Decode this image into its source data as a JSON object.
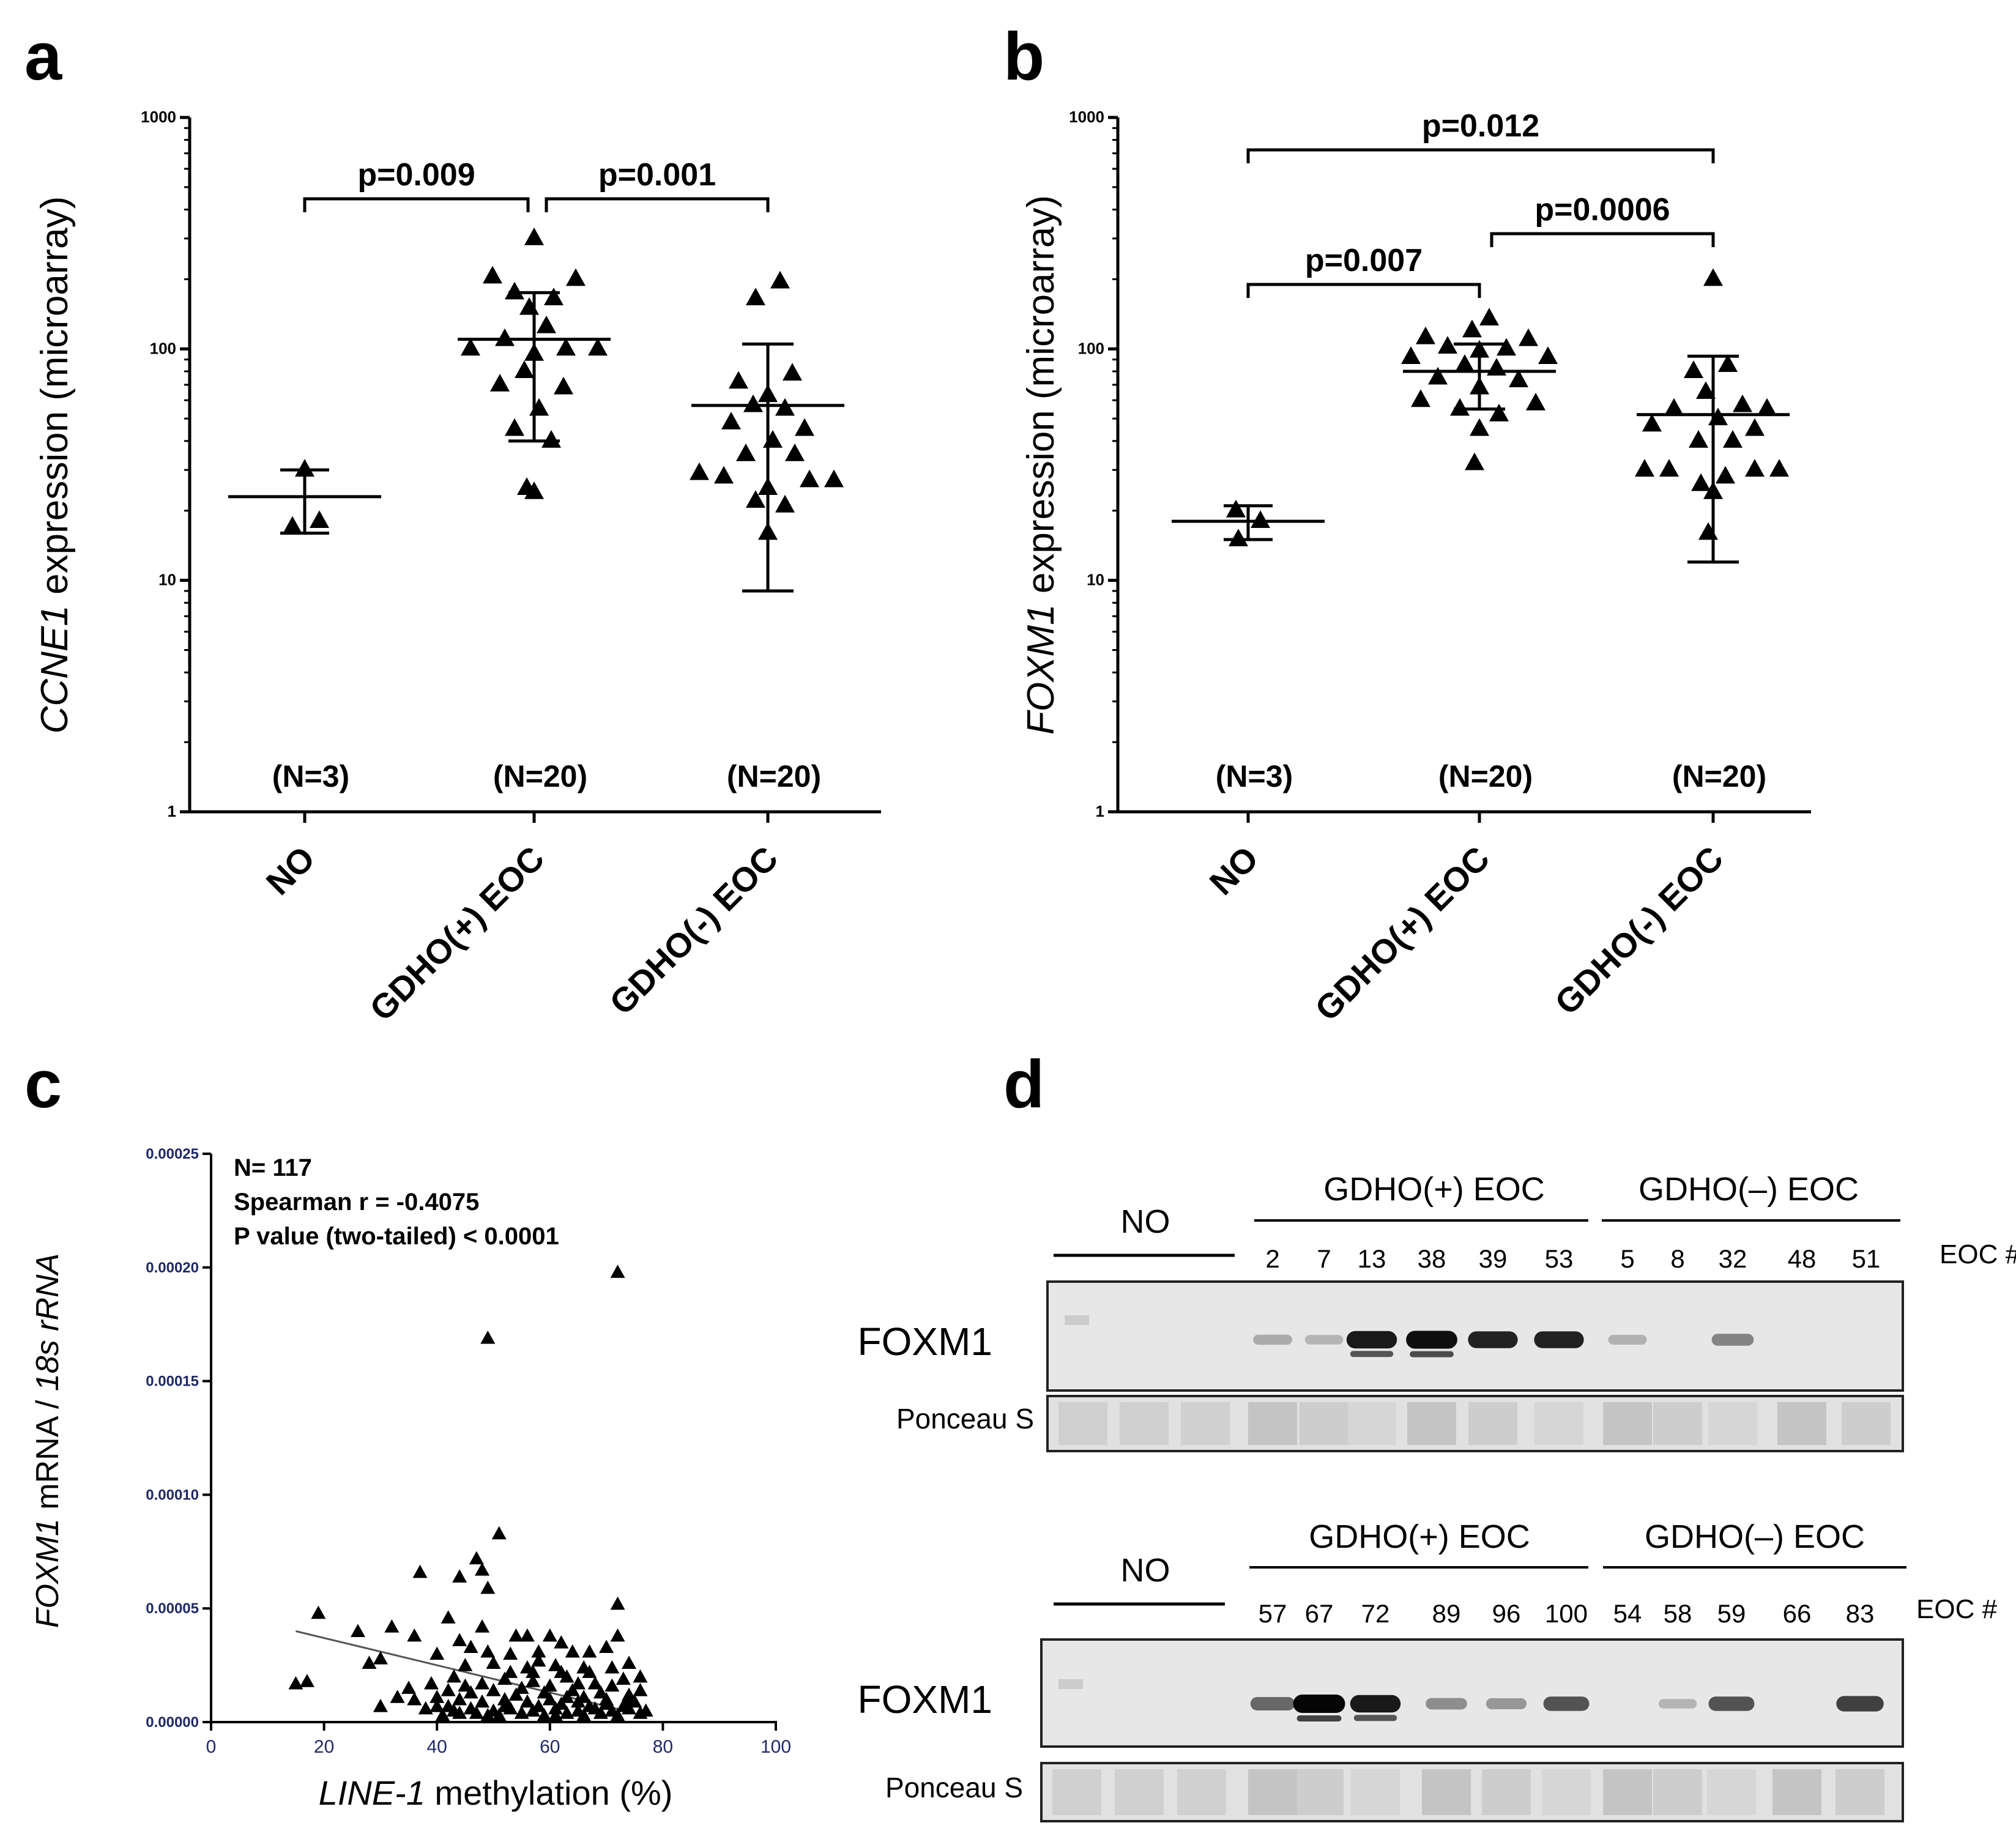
{
  "figure_labels": {
    "a": "a",
    "b": "b",
    "c": "c",
    "d": "d"
  },
  "chart_data": [
    {
      "panel": "a",
      "type": "scatter",
      "ylabel_gene": "CCNE1",
      "ylabel_rest": " expression (microarray)",
      "yscale": "log",
      "ylim": [
        1,
        1000
      ],
      "ytick_labels": [
        "1",
        "10",
        "100",
        "1000"
      ],
      "categories": [
        "NO",
        "GDHO(+) EOC",
        "GDHO(-) EOC"
      ],
      "n_labels": [
        "(N=3)",
        "(N=20)",
        "(N=20)"
      ],
      "groups": [
        {
          "name": "NO",
          "mean": 23,
          "error_low": 16,
          "error_high": 30,
          "points": [
            [
              0.0,
              30
            ],
            [
              -0.05,
              17
            ],
            [
              0.06,
              18
            ]
          ]
        },
        {
          "name": "GDHO(+) EOC",
          "mean": 110,
          "error_low": 40,
          "error_high": 175,
          "points": [
            [
              0.0,
              300
            ],
            [
              -0.17,
              205
            ],
            [
              0.17,
              200
            ],
            [
              -0.08,
              175
            ],
            [
              0.08,
              165
            ],
            [
              -0.02,
              150
            ],
            [
              0.05,
              125
            ],
            [
              -0.12,
              110
            ],
            [
              0.13,
              100
            ],
            [
              -0.26,
              100
            ],
            [
              0.26,
              100
            ],
            [
              0.0,
              95
            ],
            [
              -0.04,
              80
            ],
            [
              -0.14,
              70
            ],
            [
              0.12,
              68
            ],
            [
              0.02,
              55
            ],
            [
              -0.08,
              45
            ],
            [
              0.07,
              40
            ],
            [
              -0.03,
              25
            ],
            [
              0.0,
              24
            ]
          ]
        },
        {
          "name": "GDHO(-) EOC",
          "mean": 57,
          "error_low": 9,
          "error_high": 105,
          "points": [
            [
              0.05,
              195
            ],
            [
              -0.05,
              165
            ],
            [
              0.1,
              78
            ],
            [
              -0.12,
              72
            ],
            [
              0.0,
              63
            ],
            [
              -0.06,
              57
            ],
            [
              0.07,
              55
            ],
            [
              -0.15,
              48
            ],
            [
              0.15,
              45
            ],
            [
              0.02,
              40
            ],
            [
              -0.09,
              35
            ],
            [
              0.11,
              35
            ],
            [
              -0.28,
              29
            ],
            [
              -0.18,
              28
            ],
            [
              0.27,
              27
            ],
            [
              0.17,
              27
            ],
            [
              0.0,
              25
            ],
            [
              -0.05,
              22
            ],
            [
              0.07,
              21
            ],
            [
              0.0,
              16
            ]
          ]
        }
      ],
      "comparisons": [
        {
          "from": 0,
          "to": 1,
          "label": "p=0.009"
        },
        {
          "from": 1,
          "to": 2,
          "label": "p=0.001"
        }
      ]
    },
    {
      "panel": "b",
      "type": "scatter",
      "ylabel_gene": "FOXM1",
      "ylabel_rest": " expression (microarray)",
      "yscale": "log",
      "ylim": [
        1,
        1000
      ],
      "ytick_labels": [
        "1",
        "10",
        "100",
        "1000"
      ],
      "categories": [
        "NO",
        "GDHO(+) EOC",
        "GDHO(-) EOC"
      ],
      "n_labels": [
        "(N=3)",
        "(N=20)",
        "(N=20)"
      ],
      "groups": [
        {
          "name": "NO",
          "mean": 18,
          "error_low": 15,
          "error_high": 21,
          "points": [
            [
              -0.05,
              20
            ],
            [
              0.05,
              18
            ],
            [
              -0.04,
              15
            ]
          ]
        },
        {
          "name": "GDHO(+) EOC",
          "mean": 80,
          "error_low": 55,
          "error_high": 105,
          "points": [
            [
              0.04,
              135
            ],
            [
              -0.03,
              120
            ],
            [
              -0.22,
              112
            ],
            [
              0.2,
              110
            ],
            [
              -0.13,
              102
            ],
            [
              0.11,
              100
            ],
            [
              0.0,
              98
            ],
            [
              -0.28,
              92
            ],
            [
              0.28,
              92
            ],
            [
              -0.06,
              85
            ],
            [
              0.07,
              82
            ],
            [
              -0.17,
              75
            ],
            [
              0.16,
              73
            ],
            [
              0.0,
              68
            ],
            [
              -0.24,
              60
            ],
            [
              0.23,
              58
            ],
            [
              -0.08,
              55
            ],
            [
              0.08,
              52
            ],
            [
              0.0,
              45
            ],
            [
              -0.02,
              32
            ]
          ]
        },
        {
          "name": "GDHO(-) EOC",
          "mean": 52,
          "error_low": 12,
          "error_high": 93,
          "points": [
            [
              0.0,
              200
            ],
            [
              0.06,
              85
            ],
            [
              -0.08,
              80
            ],
            [
              -0.03,
              65
            ],
            [
              0.12,
              57
            ],
            [
              -0.16,
              55
            ],
            [
              0.22,
              55
            ],
            [
              0.02,
              50
            ],
            [
              -0.25,
              47
            ],
            [
              0.17,
              45
            ],
            [
              -0.06,
              40
            ],
            [
              0.08,
              40
            ],
            [
              -0.28,
              30
            ],
            [
              -0.18,
              30
            ],
            [
              0.27,
              30
            ],
            [
              0.17,
              30
            ],
            [
              0.05,
              28
            ],
            [
              -0.05,
              26
            ],
            [
              0.0,
              24
            ],
            [
              -0.02,
              16
            ]
          ]
        }
      ],
      "comparisons": [
        {
          "from": 0,
          "to": 2,
          "label": "p=0.012"
        },
        {
          "from": 0,
          "to": 1,
          "label": "p=0.007"
        },
        {
          "from": 1,
          "to": 2,
          "label": "p=0.0006"
        }
      ]
    },
    {
      "panel": "c",
      "type": "scatter",
      "ylabel_gene": "FOXM1",
      "ylabel_mid": " mRNA / ",
      "ylabel_ref": "18s rRNA",
      "xlabel_gene": "LINE-1",
      "xlabel_rest": " methylation (%)",
      "xlim": [
        0,
        100
      ],
      "ylim": [
        0,
        0.00025
      ],
      "xticks": [
        0,
        20,
        40,
        60,
        80,
        100
      ],
      "xtick_labels": [
        "0",
        "20",
        "40",
        "60",
        "80",
        "100"
      ],
      "yticks": [
        0,
        5e-05,
        0.0001,
        0.00015,
        0.0002,
        0.00025
      ],
      "ytick_labels": [
        "0.00000",
        "0.00005",
        "0.00010",
        "0.00015",
        "0.00020",
        "0.00025"
      ],
      "annotations": [
        "N= 117",
        "Spearman r = -0.4075",
        "P value (two-tailed) < 0.0001"
      ],
      "regression": {
        "x": [
          15,
          75
        ],
        "y": [
          4e-05,
          4e-06
        ]
      },
      "points": [
        [
          72,
          0.000196
        ],
        [
          49,
          0.000167
        ],
        [
          51,
          8.1e-05
        ],
        [
          47,
          7e-05
        ],
        [
          48,
          6.5e-05
        ],
        [
          37,
          6.4e-05
        ],
        [
          44,
          6.2e-05
        ],
        [
          49,
          5.7e-05
        ],
        [
          19,
          4.6e-05
        ],
        [
          42,
          4.4e-05
        ],
        [
          72,
          5e-05
        ],
        [
          48,
          4e-05
        ],
        [
          32,
          4e-05
        ],
        [
          26,
          3.8e-05
        ],
        [
          36,
          3.6e-05
        ],
        [
          44,
          3.4e-05
        ],
        [
          54,
          3.6e-05
        ],
        [
          56,
          3.6e-05
        ],
        [
          60,
          3.6e-05
        ],
        [
          46,
          3.1e-05
        ],
        [
          40,
          2.8e-05
        ],
        [
          30,
          2.6e-05
        ],
        [
          62,
          3.3e-05
        ],
        [
          28,
          2.4e-05
        ],
        [
          53,
          2.8e-05
        ],
        [
          58,
          2.9e-05
        ],
        [
          64,
          2.9e-05
        ],
        [
          67,
          2.9e-05
        ],
        [
          70,
          3.1e-05
        ],
        [
          72,
          3.6e-05
        ],
        [
          45,
          2.3e-05
        ],
        [
          50,
          2.4e-05
        ],
        [
          56,
          2.2e-05
        ],
        [
          61,
          2.3e-05
        ],
        [
          66,
          2.2e-05
        ],
        [
          71,
          2.2e-05
        ],
        [
          74,
          2.4e-05
        ],
        [
          15,
          1.5e-05
        ],
        [
          17,
          1.6e-05
        ],
        [
          43,
          1.8e-05
        ],
        [
          48,
          1.5e-05
        ],
        [
          52,
          1.7e-05
        ],
        [
          57,
          1.6e-05
        ],
        [
          63,
          1.8e-05
        ],
        [
          68,
          1.5e-05
        ],
        [
          73,
          1.7e-05
        ],
        [
          76,
          1.8e-05
        ],
        [
          42,
          1.2e-05
        ],
        [
          46,
          1.1e-05
        ],
        [
          50,
          1.2e-05
        ],
        [
          54,
          1e-05
        ],
        [
          59,
          1.1e-05
        ],
        [
          64,
          1.2e-05
        ],
        [
          69,
          1.1e-05
        ],
        [
          74,
          1e-05
        ],
        [
          33,
          9e-06
        ],
        [
          36,
          8e-06
        ],
        [
          40,
          9e-06
        ],
        [
          44,
          8e-06
        ],
        [
          48,
          7e-06
        ],
        [
          52,
          8e-06
        ],
        [
          56,
          7e-06
        ],
        [
          60,
          8e-06
        ],
        [
          65,
          7e-06
        ],
        [
          70,
          8e-06
        ],
        [
          75,
          7e-06
        ],
        [
          38,
          4e-06
        ],
        [
          42,
          5e-06
        ],
        [
          46,
          4e-06
        ],
        [
          50,
          3e-06
        ],
        [
          53,
          4e-06
        ],
        [
          57,
          3e-06
        ],
        [
          61,
          4e-06
        ],
        [
          65,
          3e-06
        ],
        [
          68,
          4e-06
        ],
        [
          71,
          3e-06
        ],
        [
          74,
          4e-06
        ],
        [
          77,
          3e-06
        ],
        [
          30,
          5e-06
        ],
        [
          47,
          2e-06
        ],
        [
          51,
          1e-06
        ],
        [
          55,
          2e-06
        ],
        [
          59,
          1e-06
        ],
        [
          63,
          2e-06
        ],
        [
          66,
          1e-06
        ],
        [
          69,
          2e-06
        ],
        [
          72,
          1e-06
        ],
        [
          76,
          2e-06
        ],
        [
          41,
          1e-06
        ],
        [
          44,
          2e-06
        ],
        [
          49,
          1e-06
        ],
        [
          58,
          5e-06
        ],
        [
          62,
          6e-06
        ],
        [
          67,
          5e-06
        ],
        [
          70,
          6e-06
        ],
        [
          73,
          5e-06
        ],
        [
          55,
          1.3e-05
        ],
        [
          60,
          1.4e-05
        ],
        [
          65,
          1.5e-05
        ],
        [
          45,
          1.4e-05
        ],
        [
          39,
          1.5e-05
        ],
        [
          35,
          1.3e-05
        ],
        [
          57,
          2e-05
        ],
        [
          62,
          2e-05
        ],
        [
          67,
          2e-05
        ],
        [
          71,
          1.4e-05
        ],
        [
          76,
          1.2e-05
        ],
        [
          74,
          8e-06
        ],
        [
          63,
          9e-06
        ],
        [
          53,
          2e-05
        ],
        [
          58,
          2.5e-05
        ],
        [
          49,
          2.9e-05
        ],
        [
          40,
          5e-06
        ],
        [
          43,
          3e-06
        ],
        [
          52,
          5e-06
        ],
        [
          61,
          1e-06
        ],
        [
          66,
          9e-06
        ]
      ]
    }
  ],
  "blots": {
    "top": {
      "no_label": "NO",
      "gdho_pos_label": "GDHO(+) EOC",
      "gdho_neg_label": "GDHO(–) EOC",
      "lanes": [
        "2",
        "7",
        "13",
        "38",
        "39",
        "53",
        "5",
        "8",
        "32",
        "48",
        "51"
      ],
      "eoc_label": "EOC #",
      "protein_label": "FOXM1",
      "loading_label": "Ponceau S",
      "band_intensity": [
        0.15,
        0.1,
        0.9,
        0.95,
        0.85,
        0.85,
        0.12,
        0.0,
        0.35,
        0.0,
        0.0
      ]
    },
    "bottom": {
      "no_label": "NO",
      "gdho_pos_label": "GDHO(+) EOC",
      "gdho_neg_label": "GDHO(–) EOC",
      "lanes": [
        "57",
        "67",
        "72",
        "89",
        "96",
        "100",
        "54",
        "58",
        "59",
        "66",
        "83"
      ],
      "eoc_label": "EOC #",
      "protein_label": "FOXM1",
      "loading_label": "Ponceau S",
      "band_intensity": [
        0.5,
        1.0,
        0.9,
        0.3,
        0.25,
        0.6,
        0.0,
        0.1,
        0.6,
        0.0,
        0.7
      ]
    }
  }
}
